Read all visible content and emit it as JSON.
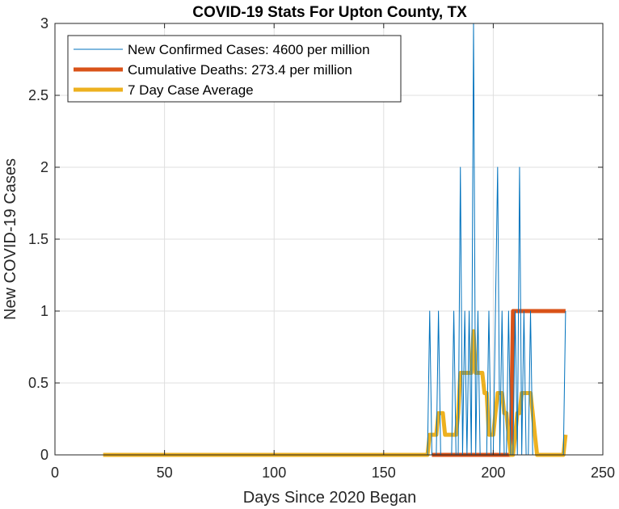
{
  "chart_data": {
    "type": "line",
    "title": "COVID-19 Stats For Upton County, TX",
    "xlabel": "Days Since 2020 Began",
    "ylabel": "New COVID-19 Cases",
    "xlim": [
      0,
      250
    ],
    "ylim": [
      0,
      3
    ],
    "xticks": [
      0,
      50,
      100,
      150,
      200,
      250
    ],
    "yticks": [
      0,
      0.5,
      1,
      1.5,
      2,
      2.5,
      3
    ],
    "xtick_labels": [
      "0",
      "50",
      "100",
      "150",
      "200",
      "250"
    ],
    "ytick_labels": [
      "0",
      "0.5",
      "1",
      "1.5",
      "2",
      "2.5",
      "3"
    ],
    "grid": true,
    "legend_position": "top-left",
    "series": [
      {
        "name": "New Confirmed Cases: 4600 per million",
        "color": "#0072BD",
        "style": "thin",
        "x": [
          22,
          170,
          171,
          172,
          173,
          174,
          175,
          176,
          177,
          178,
          179,
          180,
          181,
          182,
          183,
          184,
          185,
          186,
          187,
          188,
          189,
          190,
          191,
          192,
          193,
          194,
          195,
          196,
          197,
          198,
          199,
          200,
          201,
          202,
          203,
          204,
          205,
          206,
          207,
          208,
          209,
          210,
          211,
          212,
          213,
          214,
          215,
          216,
          217,
          218,
          219,
          220,
          221,
          222,
          223,
          224,
          225,
          226,
          227,
          228,
          229,
          230,
          231,
          232,
          233
        ],
        "y": [
          0,
          0,
          1,
          0,
          0,
          0,
          1,
          0,
          0,
          0,
          0,
          0,
          0,
          1,
          0,
          0,
          2,
          0,
          1,
          0,
          1,
          0,
          3,
          0,
          1,
          0,
          0,
          0,
          0,
          1,
          0,
          0,
          1,
          2,
          0,
          1,
          0,
          0,
          1,
          0,
          0,
          1,
          0,
          2,
          0,
          1,
          0,
          0,
          1,
          0,
          0,
          0,
          0,
          0,
          0,
          0,
          0,
          0,
          0,
          0,
          0,
          0,
          0,
          0,
          1
        ]
      },
      {
        "name": "Cumulative Deaths: 273.4 per million",
        "color": "#D95319",
        "style": "thick",
        "x": [
          172,
          208,
          209,
          233
        ],
        "y": [
          0,
          0,
          1,
          1
        ]
      },
      {
        "name": "7 Day Case Average",
        "color": "#EDB120",
        "style": "thick",
        "x": [
          22,
          170,
          171,
          172,
          173,
          174,
          175,
          176,
          177,
          178,
          179,
          180,
          181,
          182,
          183,
          184,
          185,
          186,
          187,
          188,
          189,
          190,
          191,
          192,
          193,
          194,
          195,
          196,
          197,
          198,
          199,
          200,
          201,
          202,
          203,
          204,
          205,
          206,
          207,
          208,
          209,
          210,
          211,
          212,
          213,
          214,
          215,
          216,
          217,
          218,
          219,
          220,
          221,
          222,
          223,
          224,
          225,
          226,
          227,
          228,
          229,
          230,
          231,
          232,
          233
        ],
        "y": [
          0,
          0,
          0.14,
          0.14,
          0.14,
          0.14,
          0.29,
          0.29,
          0.29,
          0.14,
          0.14,
          0.14,
          0.14,
          0.14,
          0.14,
          0.29,
          0.57,
          0.57,
          0.57,
          0.57,
          0.57,
          0.57,
          0.86,
          0.57,
          0.57,
          0.57,
          0.57,
          0.43,
          0.43,
          0.14,
          0.14,
          0.14,
          0.29,
          0.43,
          0.43,
          0.43,
          0.29,
          0.29,
          0.14,
          0,
          0,
          0.14,
          0.29,
          0.29,
          0.43,
          0.43,
          0.43,
          0.43,
          0.43,
          0.29,
          0.14,
          0,
          0,
          0,
          0,
          0,
          0,
          0,
          0,
          0,
          0,
          0,
          0,
          0,
          0.14
        ]
      }
    ]
  }
}
